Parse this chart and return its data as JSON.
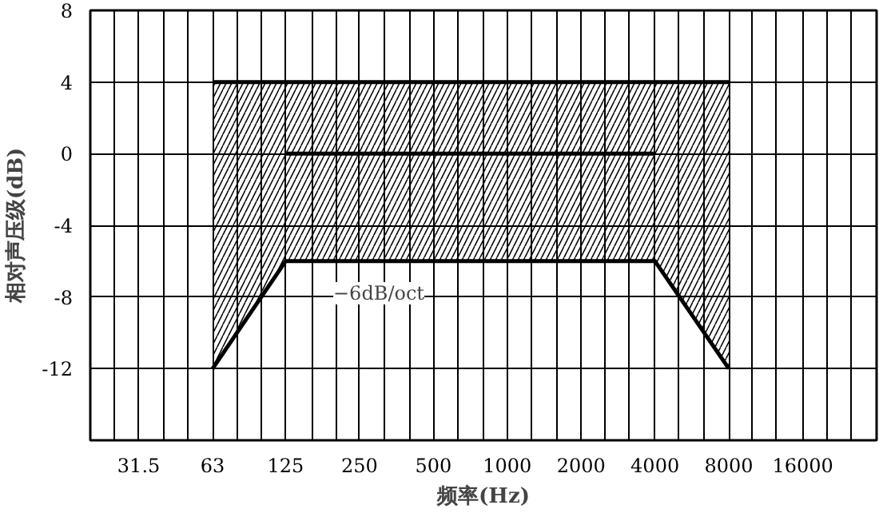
{
  "chart_data": {
    "type": "line",
    "xlabel": "频率(Hz)",
    "ylabel": "相对声压级(dB)",
    "log": "x",
    "xlim": [
      20,
      32000
    ],
    "ylim": [
      -16,
      8
    ],
    "xticks": [
      {
        "value": 25,
        "label": null
      },
      {
        "value": 31.5,
        "label": "31.5"
      },
      {
        "value": 40,
        "label": null
      },
      {
        "value": 50,
        "label": null
      },
      63,
      {
        "value": 80,
        "label": null
      },
      {
        "value": 100,
        "label": null
      },
      125,
      {
        "value": 160,
        "label": null
      },
      {
        "value": 200,
        "label": null
      },
      250,
      {
        "value": 315,
        "label": null
      },
      {
        "value": 400,
        "label": null
      },
      500,
      {
        "value": 630,
        "label": null
      },
      {
        "value": 800,
        "label": null
      },
      1000,
      {
        "value": 1250,
        "label": null
      },
      {
        "value": 1600,
        "label": null
      },
      2000,
      {
        "value": 2500,
        "label": null
      },
      {
        "value": 3150,
        "label": null
      },
      4000,
      {
        "value": 5000,
        "label": null
      },
      {
        "value": 6300,
        "label": null
      },
      8000,
      {
        "value": 10000,
        "label": null
      },
      {
        "value": 12500,
        "label": null
      },
      16000,
      {
        "value": 20000,
        "label": null
      },
      {
        "value": 25000,
        "label": null
      }
    ],
    "yticks": [
      {
        "value": -16,
        "label": null
      },
      -12,
      -8,
      -4,
      0,
      4,
      8
    ],
    "grid": true,
    "series": [
      {
        "color": "#000000",
        "x": [
          63,
          125,
          4000,
          8000
        ],
        "values": [
          4,
          4,
          4,
          4
        ],
        "lower": [
          -12,
          -6,
          -6,
          -12
        ],
        "upper": [
          4,
          4,
          4,
          4
        ]
      },
      {
        "color": "#000000",
        "x": [
          63,
          125,
          4000,
          8000
        ],
        "values": [
          -12,
          -6,
          -6,
          -12
        ]
      },
      {
        "color": "#000000",
        "x": [
          125,
          4000
        ],
        "values": [
          0,
          0
        ]
      }
    ],
    "annotations": [
      "−6dB/oct"
    ]
  }
}
